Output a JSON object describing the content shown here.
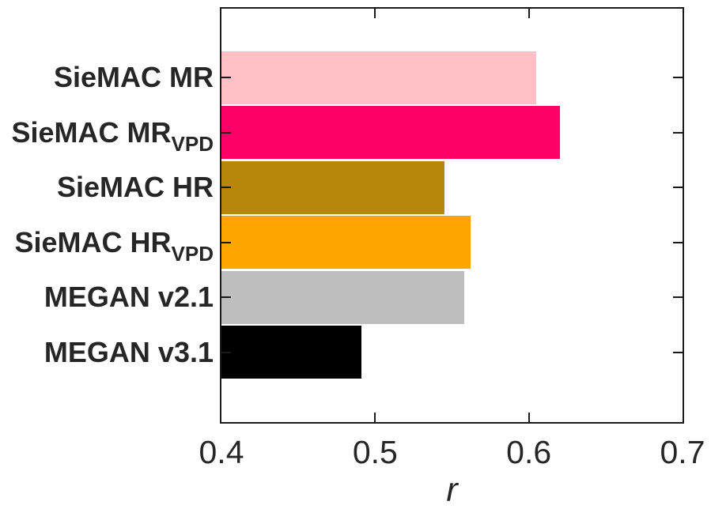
{
  "chart_data": {
    "type": "bar",
    "orientation": "horizontal",
    "title": "",
    "xlabel": "r",
    "ylabel": "",
    "xlim": [
      0.4,
      0.7
    ],
    "xticks": [
      0.4,
      0.5,
      0.6,
      0.7
    ],
    "xtick_labels": [
      "0.4",
      "0.5",
      "0.6",
      "0.7"
    ],
    "grid": false,
    "legend": "none",
    "categories": [
      {
        "label": "SieMAC MR",
        "subscript": ""
      },
      {
        "label": "SieMAC MR",
        "subscript": "VPD"
      },
      {
        "label": "SieMAC HR",
        "subscript": ""
      },
      {
        "label": "SieMAC HR",
        "subscript": "VPD"
      },
      {
        "label": "MEGAN v2.1",
        "subscript": ""
      },
      {
        "label": "MEGAN v3.1",
        "subscript": ""
      }
    ],
    "values": [
      0.605,
      0.62,
      0.545,
      0.562,
      0.558,
      0.491
    ],
    "bar_colors": [
      "#ffc1c5",
      "#ff0066",
      "#b8860b",
      "#ffa500",
      "#bebebe",
      "#000000"
    ],
    "axis_color": "#1a1a1a",
    "text_color": "#262626",
    "background_color": "#ffffff"
  }
}
